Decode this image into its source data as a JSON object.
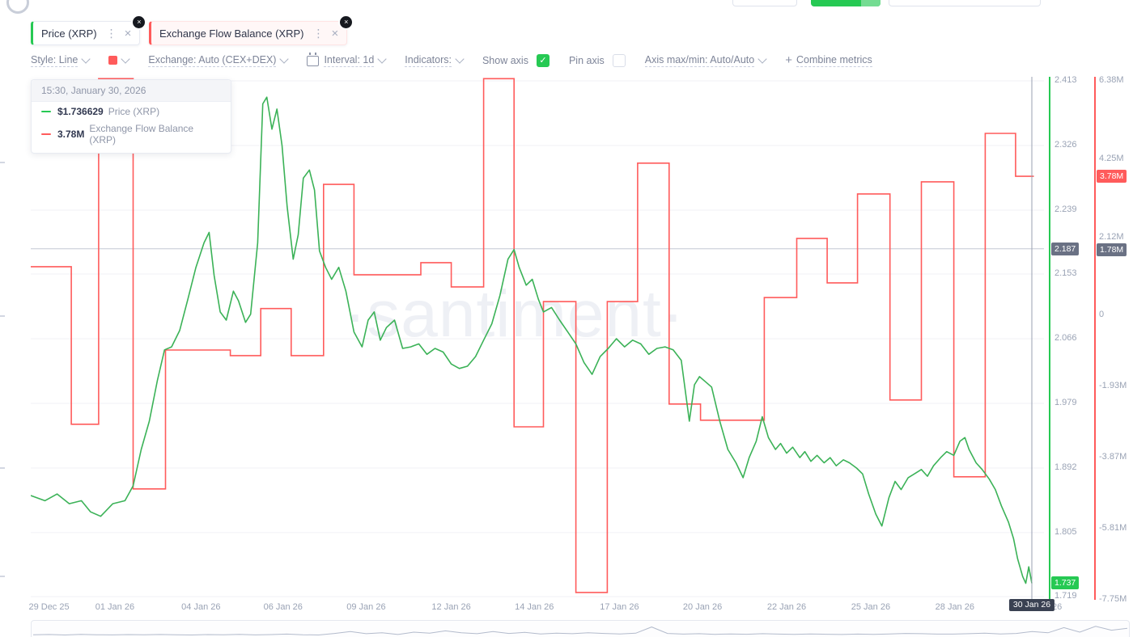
{
  "app": {
    "watermark": "·santiment·"
  },
  "metric_tabs": [
    {
      "label": "Price (XRP)",
      "accent_color": "#26c953"
    },
    {
      "label": "Exchange Flow Balance (XRP)",
      "accent_color": "#ff5b5b"
    }
  ],
  "toolbar": {
    "style": "Style: Line",
    "swatch_color": "#ff5b5b",
    "exchange": "Exchange: Auto (CEX+DEX)",
    "interval": "Interval: 1d",
    "indicators": "Indicators:",
    "show_axis": "Show axis",
    "show_axis_checked": true,
    "pin_axis": "Pin axis",
    "pin_axis_checked": false,
    "axis_maxmin": "Axis max/min: Auto/Auto",
    "combine_plus": "+",
    "combine_metrics": "Combine metrics"
  },
  "tooltip": {
    "timestamp": "15:30, January 30, 2026",
    "rows": [
      {
        "value": "$1.736629",
        "label": "Price (XRP)",
        "color": "#26c953"
      },
      {
        "value": "3.78M",
        "label": "Exchange Flow Balance (XRP)",
        "color": "#ff5b5b"
      }
    ]
  },
  "chart_data": {
    "type": "line",
    "title": "",
    "grid": "horizontal",
    "legend_position": "floating-tooltip-top-left",
    "series": [
      {
        "name": "Price (XRP)",
        "type": "line",
        "axis": "price",
        "color": "#3bb257",
        "unit": "USD",
        "points": [
          [
            0.0,
            1.855
          ],
          [
            0.014,
            1.848
          ],
          [
            0.026,
            1.857
          ],
          [
            0.038,
            1.844
          ],
          [
            0.05,
            1.848
          ],
          [
            0.059,
            1.833
          ],
          [
            0.069,
            1.827
          ],
          [
            0.081,
            1.844
          ],
          [
            0.093,
            1.848
          ],
          [
            0.101,
            1.868
          ],
          [
            0.109,
            1.917
          ],
          [
            0.117,
            1.955
          ],
          [
            0.125,
            2.01
          ],
          [
            0.132,
            2.051
          ],
          [
            0.139,
            2.055
          ],
          [
            0.147,
            2.077
          ],
          [
            0.155,
            2.119
          ],
          [
            0.163,
            2.162
          ],
          [
            0.171,
            2.195
          ],
          [
            0.176,
            2.209
          ],
          [
            0.181,
            2.151
          ],
          [
            0.187,
            2.102
          ],
          [
            0.193,
            2.091
          ],
          [
            0.2,
            2.13
          ],
          [
            0.205,
            2.117
          ],
          [
            0.212,
            2.088
          ],
          [
            0.217,
            2.099
          ],
          [
            0.224,
            2.195
          ],
          [
            0.229,
            2.382
          ],
          [
            0.233,
            2.391
          ],
          [
            0.238,
            2.348
          ],
          [
            0.243,
            2.375
          ],
          [
            0.248,
            2.326
          ],
          [
            0.253,
            2.244
          ],
          [
            0.259,
            2.173
          ],
          [
            0.264,
            2.206
          ],
          [
            0.269,
            2.282
          ],
          [
            0.275,
            2.293
          ],
          [
            0.28,
            2.266
          ],
          [
            0.285,
            2.184
          ],
          [
            0.291,
            2.162
          ],
          [
            0.297,
            2.146
          ],
          [
            0.304,
            2.162
          ],
          [
            0.311,
            2.13
          ],
          [
            0.319,
            2.075
          ],
          [
            0.327,
            2.055
          ],
          [
            0.333,
            2.091
          ],
          [
            0.339,
            2.102
          ],
          [
            0.345,
            2.064
          ],
          [
            0.351,
            2.081
          ],
          [
            0.359,
            2.091
          ],
          [
            0.367,
            2.053
          ],
          [
            0.375,
            2.055
          ],
          [
            0.383,
            2.059
          ],
          [
            0.391,
            2.045
          ],
          [
            0.399,
            2.053
          ],
          [
            0.407,
            2.048
          ],
          [
            0.415,
            2.032
          ],
          [
            0.423,
            2.026
          ],
          [
            0.431,
            2.029
          ],
          [
            0.439,
            2.042
          ],
          [
            0.447,
            2.064
          ],
          [
            0.455,
            2.086
          ],
          [
            0.463,
            2.124
          ],
          [
            0.471,
            2.173
          ],
          [
            0.477,
            2.186
          ],
          [
            0.482,
            2.162
          ],
          [
            0.489,
            2.138
          ],
          [
            0.495,
            2.146
          ],
          [
            0.501,
            2.119
          ],
          [
            0.506,
            2.102
          ],
          [
            0.514,
            2.108
          ],
          [
            0.522,
            2.091
          ],
          [
            0.53,
            2.075
          ],
          [
            0.538,
            2.059
          ],
          [
            0.546,
            2.034
          ],
          [
            0.554,
            2.018
          ],
          [
            0.562,
            2.042
          ],
          [
            0.57,
            2.053
          ],
          [
            0.578,
            2.066
          ],
          [
            0.586,
            2.055
          ],
          [
            0.594,
            2.064
          ],
          [
            0.602,
            2.059
          ],
          [
            0.61,
            2.045
          ],
          [
            0.618,
            2.053
          ],
          [
            0.626,
            2.055
          ],
          [
            0.634,
            2.051
          ],
          [
            0.642,
            2.037
          ],
          [
            0.65,
            1.955
          ],
          [
            0.655,
            2.004
          ],
          [
            0.66,
            2.015
          ],
          [
            0.666,
            2.008
          ],
          [
            0.672,
            2.001
          ],
          [
            0.68,
            1.955
          ],
          [
            0.688,
            1.917
          ],
          [
            0.696,
            1.899
          ],
          [
            0.703,
            1.879
          ],
          [
            0.709,
            1.906
          ],
          [
            0.716,
            1.928
          ],
          [
            0.722,
            1.961
          ],
          [
            0.728,
            1.933
          ],
          [
            0.735,
            1.917
          ],
          [
            0.74,
            1.925
          ],
          [
            0.746,
            1.912
          ],
          [
            0.752,
            1.92
          ],
          [
            0.759,
            1.906
          ],
          [
            0.764,
            1.914
          ],
          [
            0.77,
            1.901
          ],
          [
            0.776,
            1.909
          ],
          [
            0.783,
            1.899
          ],
          [
            0.789,
            1.906
          ],
          [
            0.795,
            1.895
          ],
          [
            0.802,
            1.903
          ],
          [
            0.808,
            1.899
          ],
          [
            0.815,
            1.892
          ],
          [
            0.821,
            1.884
          ],
          [
            0.827,
            1.857
          ],
          [
            0.834,
            1.83
          ],
          [
            0.84,
            1.814
          ],
          [
            0.847,
            1.852
          ],
          [
            0.853,
            1.874
          ],
          [
            0.859,
            1.863
          ],
          [
            0.866,
            1.879
          ],
          [
            0.872,
            1.884
          ],
          [
            0.879,
            1.89
          ],
          [
            0.885,
            1.881
          ],
          [
            0.891,
            1.895
          ],
          [
            0.898,
            1.906
          ],
          [
            0.904,
            1.914
          ],
          [
            0.911,
            1.909
          ],
          [
            0.917,
            1.928
          ],
          [
            0.922,
            1.933
          ],
          [
            0.926,
            1.917
          ],
          [
            0.933,
            1.899
          ],
          [
            0.939,
            1.89
          ],
          [
            0.946,
            1.877
          ],
          [
            0.952,
            1.863
          ],
          [
            0.958,
            1.841
          ],
          [
            0.965,
            1.819
          ],
          [
            0.97,
            1.797
          ],
          [
            0.974,
            1.77
          ],
          [
            0.979,
            1.746
          ],
          [
            0.982,
            1.737
          ],
          [
            0.985,
            1.759
          ],
          [
            0.988,
            1.737
          ]
        ]
      },
      {
        "name": "Exchange Flow Balance (XRP)",
        "type": "step",
        "axis": "flow",
        "color": "#ff5b5b",
        "unit": "M",
        "points": [
          [
            0.0,
            1.32
          ],
          [
            0.04,
            -2.97
          ],
          [
            0.067,
            6.44
          ],
          [
            0.101,
            -4.73
          ],
          [
            0.133,
            -0.95
          ],
          [
            0.197,
            -1.1
          ],
          [
            0.227,
            0.18
          ],
          [
            0.257,
            -1.1
          ],
          [
            0.289,
            3.56
          ],
          [
            0.319,
            1.1
          ],
          [
            0.385,
            1.43
          ],
          [
            0.415,
            0.77
          ],
          [
            0.447,
            6.44
          ],
          [
            0.477,
            -3.04
          ],
          [
            0.506,
            0.37
          ],
          [
            0.538,
            -7.55
          ],
          [
            0.569,
            0.37
          ],
          [
            0.599,
            4.14
          ],
          [
            0.63,
            -2.42
          ],
          [
            0.661,
            -2.86
          ],
          [
            0.724,
            0.48
          ],
          [
            0.756,
            2.09
          ],
          [
            0.786,
            0.88
          ],
          [
            0.816,
            3.3
          ],
          [
            0.848,
            -2.31
          ],
          [
            0.879,
            3.63
          ],
          [
            0.911,
            -4.4
          ],
          [
            0.942,
            4.95
          ],
          [
            0.972,
            3.78
          ],
          [
            0.99,
            3.78
          ]
        ]
      }
    ],
    "price_axis": {
      "color": "#26c953",
      "min": 1.719,
      "max": 2.413,
      "ticks": [
        {
          "label": "2.413",
          "value": 2.413
        },
        {
          "label": "2.326",
          "value": 2.326
        },
        {
          "label": "2.239",
          "value": 2.239
        },
        {
          "label": "2.153",
          "value": 2.153
        },
        {
          "label": "2.066",
          "value": 2.066
        },
        {
          "label": "1.979",
          "value": 1.979
        },
        {
          "label": "1.892",
          "value": 1.892
        },
        {
          "label": "1.805",
          "value": 1.805
        },
        {
          "label": "1.719",
          "value": 1.719
        }
      ]
    },
    "flow_axis": {
      "color": "#ff5b5b",
      "min": -7.75,
      "max": 6.38,
      "ticks": [
        {
          "label": "6.38M",
          "value": 6.38
        },
        {
          "label": "4.25M",
          "value": 4.25
        },
        {
          "label": "2.12M",
          "value": 2.12
        },
        {
          "label": "0",
          "value": 0
        },
        {
          "label": "-1.93M",
          "value": -1.93
        },
        {
          "label": "-3.87M",
          "value": -3.87
        },
        {
          "label": "-5.81M",
          "value": -5.81
        },
        {
          "label": "-7.75M",
          "value": -7.75
        }
      ]
    },
    "x_ticks": [
      {
        "label": "29 Dec 25",
        "x": 0.018
      },
      {
        "label": "01 Jan 26",
        "x": 0.083
      },
      {
        "label": "04 Jan 26",
        "x": 0.168
      },
      {
        "label": "06 Jan 26",
        "x": 0.249
      },
      {
        "label": "09 Jan 26",
        "x": 0.331
      },
      {
        "label": "12 Jan 26",
        "x": 0.415
      },
      {
        "label": "14 Jan 26",
        "x": 0.497
      },
      {
        "label": "17 Jan 26",
        "x": 0.581
      },
      {
        "label": "20 Jan 26",
        "x": 0.663
      },
      {
        "label": "22 Jan 26",
        "x": 0.746
      },
      {
        "label": "25 Jan 26",
        "x": 0.829
      },
      {
        "label": "28 Jan 26",
        "x": 0.912
      }
    ],
    "crosshair": {
      "price_label": "2.187",
      "price_value": 2.187,
      "flow_label": "1.78M",
      "flow_value": 1.78,
      "x_label": "30 Jan 26",
      "x_label_tail": "26",
      "x_frac": 0.988
    },
    "last_values": {
      "price_label": "1.737",
      "price_value": 1.737,
      "flow_label": "3.78M",
      "flow_value": 3.78
    }
  },
  "navigator": {
    "values": [
      0.3,
      0.32,
      0.28,
      0.33,
      0.3,
      0.29,
      0.31,
      0.3,
      0.32,
      0.3,
      0.28,
      0.31,
      0.3,
      0.33,
      0.29,
      0.31,
      0.35,
      0.3,
      0.28,
      0.4,
      0.55,
      0.38,
      0.45,
      0.32,
      0.5,
      0.42,
      0.6,
      0.45,
      0.38,
      0.55,
      0.4,
      0.48,
      0.36,
      0.42,
      0.38,
      0.45,
      0.4,
      0.36,
      0.42,
      0.9,
      0.4,
      0.35,
      0.38,
      0.33,
      0.36,
      0.34,
      0.38,
      0.35,
      0.33,
      0.36,
      0.34,
      0.32,
      0.35,
      0.33,
      0.36,
      0.4,
      0.38,
      0.35,
      0.35,
      0.38,
      0.42,
      0.36,
      0.4,
      0.55,
      0.45,
      0.85,
      0.5,
      0.95,
      0.65,
      0.8
    ]
  }
}
